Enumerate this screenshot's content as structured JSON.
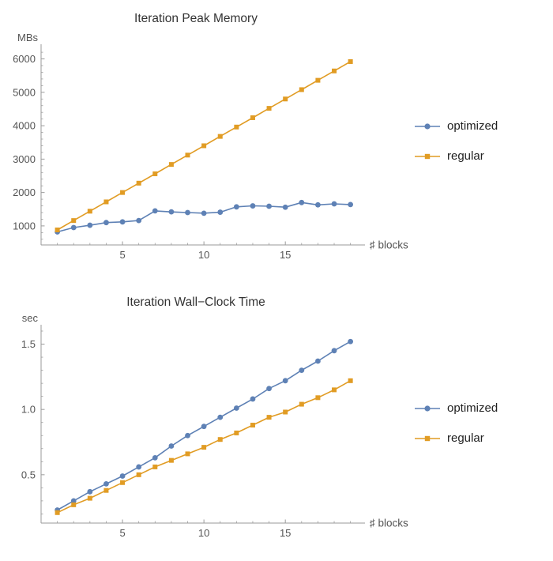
{
  "page": {
    "background": "#ffffff",
    "axis_color": "#9a9a9a",
    "label_color": "#545454",
    "title_color": "#333333"
  },
  "chart_data": [
    {
      "type": "line",
      "title": "Iteration Peak Memory",
      "ylabel": "MBs",
      "xlabel": "♯ blocks",
      "grid": false,
      "legend_position": "right",
      "xlim": [
        0,
        19.6
      ],
      "ylim": [
        430,
        6250
      ],
      "xticks": [
        5,
        10,
        15
      ],
      "xtick_labels": [
        "5",
        "10",
        "15"
      ],
      "yticks": [
        1000,
        2000,
        3000,
        4000,
        5000,
        6000
      ],
      "ytick_labels": [
        "1000",
        "2000",
        "3000",
        "4000",
        "5000",
        "6000"
      ],
      "x_minor_step": 1,
      "y_minor_step": 200,
      "x": [
        1,
        2,
        3,
        4,
        5,
        6,
        7,
        8,
        9,
        10,
        11,
        12,
        13,
        14,
        15,
        16,
        17,
        18,
        19
      ],
      "series": [
        {
          "name": "optimized",
          "color": "#5e81b5",
          "marker": "circle",
          "values": [
            820,
            950,
            1020,
            1100,
            1120,
            1160,
            1450,
            1420,
            1400,
            1380,
            1410,
            1570,
            1600,
            1590,
            1560,
            1700,
            1630,
            1660,
            1640
          ]
        },
        {
          "name": "regular",
          "color": "#e19c24",
          "marker": "square",
          "values": [
            880,
            1160,
            1440,
            1720,
            2000,
            2280,
            2560,
            2840,
            3120,
            3400,
            3680,
            3960,
            4240,
            4520,
            4800,
            5080,
            5360,
            5640,
            5920
          ]
        }
      ]
    },
    {
      "type": "line",
      "title": "Iteration Wall−Clock Time",
      "ylabel": "sec",
      "xlabel": "♯ blocks",
      "grid": false,
      "legend_position": "right",
      "xlim": [
        0,
        19.6
      ],
      "ylim": [
        0.13,
        1.6
      ],
      "xticks": [
        5,
        10,
        15
      ],
      "xtick_labels": [
        "5",
        "10",
        "15"
      ],
      "yticks": [
        0.5,
        1.0,
        1.5
      ],
      "ytick_labels": [
        "0.5",
        "1.0",
        "1.5"
      ],
      "x_minor_step": 1,
      "y_minor_step": 0.1,
      "x": [
        1,
        2,
        3,
        4,
        5,
        6,
        7,
        8,
        9,
        10,
        11,
        12,
        13,
        14,
        15,
        16,
        17,
        18,
        19
      ],
      "series": [
        {
          "name": "optimized",
          "color": "#5e81b5",
          "marker": "circle",
          "values": [
            0.23,
            0.3,
            0.37,
            0.43,
            0.49,
            0.56,
            0.63,
            0.72,
            0.8,
            0.87,
            0.94,
            1.01,
            1.08,
            1.16,
            1.22,
            1.3,
            1.37,
            1.45,
            1.52
          ]
        },
        {
          "name": "regular",
          "color": "#e19c24",
          "marker": "square",
          "values": [
            0.21,
            0.27,
            0.32,
            0.38,
            0.44,
            0.5,
            0.56,
            0.61,
            0.66,
            0.71,
            0.77,
            0.82,
            0.88,
            0.94,
            0.98,
            1.04,
            1.09,
            1.15,
            1.22
          ]
        }
      ]
    }
  ]
}
